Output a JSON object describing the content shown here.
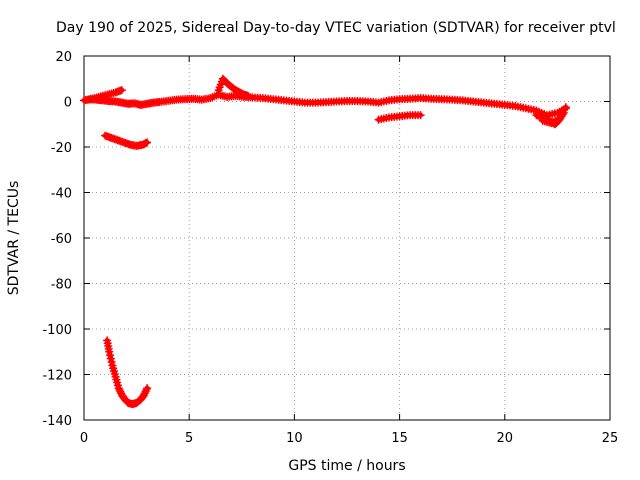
{
  "chart_data": {
    "type": "scatter",
    "title": "Day 190 of 2025, Sidereal Day-to-day VTEC variation (SDTVAR) for receiver ptvl",
    "xlabel": "GPS time / hours",
    "ylabel": "SDTVAR / TECUs",
    "xlim": [
      0,
      25
    ],
    "ylim": [
      -140,
      20
    ],
    "xticks": [
      0,
      5,
      10,
      15,
      20,
      25
    ],
    "yticks": [
      20,
      0,
      -20,
      -40,
      -60,
      -80,
      -100,
      -120,
      -140
    ],
    "grid": true,
    "marker": "plus",
    "color": "#ff0000",
    "series": [
      {
        "name": "main-band",
        "x": [
          0,
          0.3,
          0.6,
          0.9,
          1.2,
          1.5,
          1.8,
          2.1,
          2.4,
          2.7,
          3.0,
          3.3,
          3.6,
          4.0,
          4.4,
          4.8,
          5.2,
          5.6,
          6.0,
          6.4,
          6.8,
          7.2,
          7.6,
          8.0,
          8.5,
          9.0,
          9.5,
          10.0,
          10.5,
          11.0,
          11.5,
          12.0,
          12.5,
          13.0,
          13.5,
          14.0,
          14.5,
          15.0,
          15.5,
          16.0,
          16.5,
          17.0,
          17.5,
          18.0,
          18.5,
          19.0,
          19.5,
          20.0,
          20.5,
          21.0,
          21.5,
          22.0,
          22.5,
          22.9
        ],
        "y": [
          0.5,
          1,
          0.8,
          0.5,
          0.2,
          0,
          -0.5,
          -1,
          -0.8,
          -1.5,
          -1,
          -0.5,
          -0.2,
          0.3,
          0.8,
          1,
          1.2,
          0.8,
          1.5,
          3,
          2,
          2.5,
          2,
          1.8,
          1.5,
          1,
          0.5,
          0,
          -0.5,
          -0.5,
          -0.3,
          0,
          0.2,
          0.2,
          0,
          -0.5,
          0.5,
          1,
          1.2,
          1.5,
          1.2,
          1,
          0.8,
          0.5,
          0,
          -0.5,
          -1,
          -1.5,
          -2,
          -3,
          -4,
          -6,
          -5,
          -3
        ]
      },
      {
        "name": "upper-arc-0-2h",
        "x": [
          0.3,
          0.7,
          1.1,
          1.5,
          1.8
        ],
        "y": [
          1,
          2,
          3,
          4,
          5
        ]
      },
      {
        "name": "spike-6-8h",
        "x": [
          6.4,
          6.6,
          6.8,
          7.0,
          7.2,
          7.4,
          7.6,
          7.8
        ],
        "y": [
          5,
          10,
          8,
          6.5,
          5,
          4,
          3,
          2.5
        ]
      },
      {
        "name": "dip-20-23h",
        "x": [
          21.5,
          21.8,
          22.0,
          22.2,
          22.4,
          22.6,
          22.8
        ],
        "y": [
          -6,
          -7,
          -8,
          -9,
          -10,
          -8,
          -5
        ]
      },
      {
        "name": "dip-20-23h-b",
        "x": [
          21.8,
          22.2,
          22.6,
          22.9
        ],
        "y": [
          -8.5,
          -9.5,
          -7.5,
          -2.5
        ]
      },
      {
        "name": "segment-14-16h",
        "x": [
          14.0,
          14.5,
          15.0,
          15.5,
          16.0
        ],
        "y": [
          -8,
          -7,
          -6.5,
          -6,
          -6
        ]
      },
      {
        "name": "low-segment-1-3h",
        "x": [
          1.0,
          1.3,
          1.6,
          1.9,
          2.2,
          2.5,
          2.8,
          3.0
        ],
        "y": [
          -15,
          -16,
          -17,
          -18,
          -19,
          -19.5,
          -19,
          -18
        ]
      },
      {
        "name": "deep-dip-1-3h",
        "x": [
          1.1,
          1.2,
          1.35,
          1.5,
          1.65,
          1.8,
          1.95,
          2.1,
          2.3,
          2.5,
          2.7,
          2.85,
          3.0
        ],
        "y": [
          -105,
          -110,
          -116,
          -121,
          -126,
          -129,
          -131,
          -132.5,
          -133,
          -132.5,
          -131,
          -129,
          -126
        ]
      }
    ]
  }
}
